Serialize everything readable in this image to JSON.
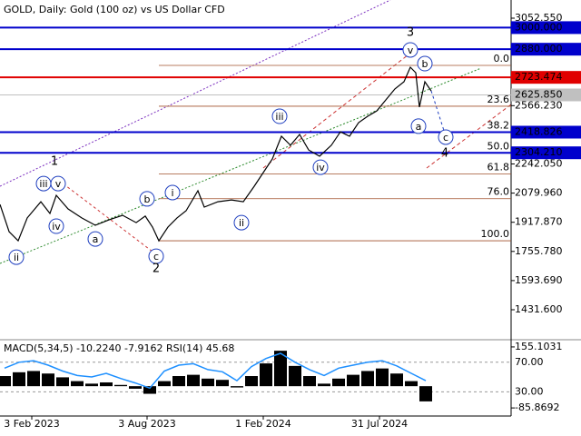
{
  "chart_data": {
    "type": "line",
    "title": "GOLD, Daily:  Gold (100 oz) vs US Dollar CFD",
    "xlim": [
      0,
      563
    ],
    "xticks": [
      {
        "value": 35,
        "label": "3 Feb 2023"
      },
      {
        "value": 162,
        "label": "3 Aug 2023"
      },
      {
        "value": 290,
        "label": "1 Feb 2024"
      },
      {
        "value": 418,
        "label": "31 Jul 2024"
      }
    ],
    "ylim": [
      1275.06,
      3153.54
    ],
    "yticks": [
      {
        "value": 3052.55,
        "label": "3052.550"
      },
      {
        "value": 2566.23,
        "label": "2566.230"
      },
      {
        "value": 2242.05,
        "label": "2242.050"
      },
      {
        "value": 2079.96,
        "label": "2079.960"
      },
      {
        "value": 1917.87,
        "label": "1917.870"
      },
      {
        "value": 1755.78,
        "label": "1755.780"
      },
      {
        "value": 1593.69,
        "label": "1593.690"
      },
      {
        "value": 1431.6,
        "label": "1431.600"
      }
    ],
    "series": [
      {
        "name": "GOLD",
        "color": "#000000",
        "x": [
          0,
          10,
          20,
          30,
          45,
          55,
          62,
          75,
          90,
          105,
          120,
          135,
          150,
          160,
          168,
          175,
          185,
          195,
          205,
          218,
          225,
          240,
          255,
          268,
          280,
          290,
          300,
          310,
          320,
          330,
          340,
          352,
          365,
          375,
          385,
          395,
          405,
          415,
          425,
          435,
          445,
          452,
          458,
          462,
          468,
          475
        ],
        "values": [
          2017,
          1866,
          1815,
          1942,
          2032,
          1967,
          2068,
          1992,
          1942,
          1901,
          1931,
          1957,
          1916,
          1952,
          1891,
          1815,
          1891,
          1942,
          1982,
          2093,
          2002,
          2032,
          2042,
          2032,
          2118,
          2194,
          2270,
          2396,
          2346,
          2406,
          2320,
          2285,
          2346,
          2421,
          2396,
          2472,
          2507,
          2537,
          2598,
          2659,
          2699,
          2780,
          2749,
          2558,
          2699,
          2648
        ]
      }
    ],
    "levels": [
      {
        "value": 3000,
        "label": "3000.000",
        "color": "#0000cc"
      },
      {
        "value": 2880,
        "label": "2880.000",
        "color": "#0000cc"
      },
      {
        "value": 2723.474,
        "label": "2723.474",
        "color": "#e00000"
      },
      {
        "value": 2625.85,
        "label": "2625.850",
        "color": "#c0c0c0"
      },
      {
        "value": 2418.826,
        "label": "2418.826",
        "color": "#0000cc"
      },
      {
        "value": 2304.21,
        "label": "2304.210",
        "color": "#0000cc"
      }
    ],
    "fib_levels": [
      {
        "label": "0.0",
        "price": 2790
      },
      {
        "label": "23.6",
        "price": 2563
      },
      {
        "label": "38.2",
        "price": 2418
      },
      {
        "label": "50.0",
        "price": 2302
      },
      {
        "label": "61.8",
        "price": 2187
      },
      {
        "label": "76.0",
        "price": 2049
      },
      {
        "label": "100.0",
        "price": 1815
      }
    ],
    "fib_color": "#a0522d",
    "wave_labels": [
      {
        "text": "ii",
        "x": 18,
        "price": 1724
      },
      {
        "text": "iii",
        "x": 48,
        "price": 2133
      },
      {
        "text": "v",
        "x": 64,
        "price": 2133
      },
      {
        "text": "iv",
        "x": 62,
        "price": 1896
      },
      {
        "text": "a",
        "x": 105,
        "price": 1825
      },
      {
        "text": "b",
        "x": 162,
        "price": 2048
      },
      {
        "text": "i",
        "x": 190,
        "price": 2083
      },
      {
        "text": "c",
        "x": 172,
        "price": 1729
      },
      {
        "text": "ii",
        "x": 266,
        "price": 1916
      },
      {
        "text": "iii",
        "x": 308,
        "price": 2507
      },
      {
        "text": "iv",
        "x": 353,
        "price": 2224
      },
      {
        "text": "v",
        "x": 452,
        "price": 2876
      },
      {
        "text": "b",
        "x": 468,
        "price": 2800
      },
      {
        "text": "a",
        "x": 461,
        "price": 2452
      },
      {
        "text": "c",
        "x": 491,
        "price": 2391
      }
    ],
    "wave_color": "#1f3fbf",
    "degree_labels": [
      {
        "text": "1",
        "x": 60,
        "price": 2255
      },
      {
        "text": "2",
        "x": 172,
        "price": 1659
      },
      {
        "text": "3",
        "x": 452,
        "price": 2972
      },
      {
        "text": "4",
        "x": 490,
        "price": 2300
      }
    ],
    "degree_color": "#b03020",
    "indicator": {
      "label": "MACD(5,34,5) -10.2240 -7.9162 RSI(14) 45.68",
      "ylim": [
        -114.2,
        172.8
      ],
      "yticks": [
        {
          "value": 155.1031,
          "label": "155.1031"
        },
        {
          "value": -85.8692,
          "label": "-85.8692"
        }
      ],
      "y2lim": [
        -1.5,
        96.7
      ],
      "y2ticks": [
        {
          "value": 70,
          "label": "70.00"
        },
        {
          "value": 30,
          "label": "30.00"
        }
      ],
      "x": [
        5,
        21,
        37,
        53,
        69,
        85,
        101,
        117,
        133,
        149,
        165,
        181,
        197,
        213,
        229,
        245,
        261,
        277,
        293,
        309,
        325,
        341,
        357,
        373,
        389,
        405,
        421,
        437,
        453,
        469
      ],
      "series": [
        {
          "name": "MACD",
          "color": "#000000",
          "values": [
            40,
            55,
            60,
            50,
            35,
            20,
            10,
            15,
            5,
            -10,
            -30,
            20,
            40,
            45,
            30,
            25,
            -5,
            40,
            90,
            140,
            80,
            40,
            10,
            30,
            45,
            60,
            70,
            50,
            20,
            -60
          ]
        },
        {
          "name": "RSI",
          "color": "#1e90ff",
          "axis": "y2",
          "values": [
            62,
            70,
            72,
            66,
            58,
            52,
            50,
            55,
            48,
            42,
            35,
            58,
            66,
            68,
            60,
            57,
            45,
            64,
            75,
            82,
            70,
            60,
            52,
            62,
            66,
            70,
            72,
            65,
            55,
            45
          ]
        }
      ]
    }
  }
}
